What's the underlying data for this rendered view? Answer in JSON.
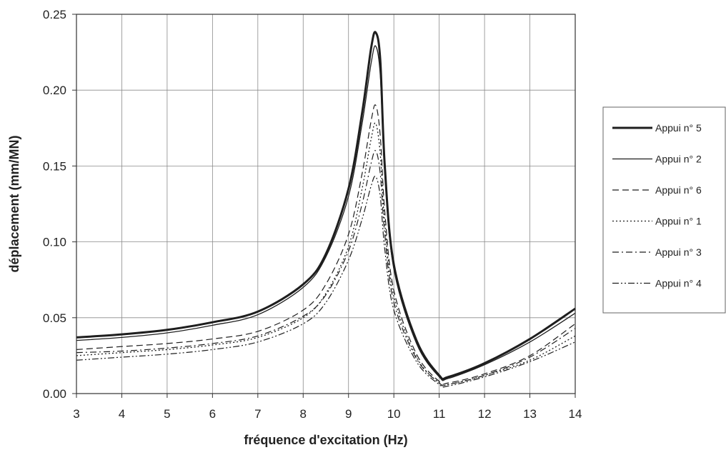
{
  "chart_data": {
    "type": "line",
    "title": "",
    "xlabel": "fréquence d'excitation (Hz)",
    "ylabel": "déplacement (mm/MN)",
    "xlim": [
      3,
      14
    ],
    "ylim": [
      0,
      0.25
    ],
    "xticks": [
      "3",
      "4",
      "5",
      "6",
      "7",
      "8",
      "9",
      "10",
      "11",
      "12",
      "13",
      "14"
    ],
    "yticks": [
      "0.00",
      "0.05",
      "0.10",
      "0.15",
      "0.20",
      "0.25"
    ],
    "grid": true,
    "legend_position": "right",
    "series": [
      {
        "name": "Appui n° 5",
        "style": "thick",
        "x": [
          3,
          4,
          5,
          6,
          7,
          8,
          8.5,
          9,
          9.3,
          9.5,
          9.6,
          9.7,
          9.8,
          10,
          10.5,
          11,
          11.2,
          12,
          13,
          14
        ],
        "y": [
          0.037,
          0.039,
          0.042,
          0.047,
          0.054,
          0.072,
          0.092,
          0.135,
          0.185,
          0.228,
          0.238,
          0.22,
          0.15,
          0.085,
          0.035,
          0.012,
          0.011,
          0.02,
          0.036,
          0.056
        ]
      },
      {
        "name": "Appui n° 2",
        "style": "solid",
        "x": [
          3,
          4,
          5,
          6,
          7,
          8,
          8.5,
          9,
          9.3,
          9.5,
          9.6,
          9.7,
          9.8,
          10,
          10.5,
          11,
          11.2,
          12,
          13,
          14
        ],
        "y": [
          0.035,
          0.037,
          0.04,
          0.045,
          0.052,
          0.07,
          0.09,
          0.13,
          0.178,
          0.218,
          0.229,
          0.21,
          0.145,
          0.082,
          0.033,
          0.011,
          0.01,
          0.019,
          0.034,
          0.053
        ]
      },
      {
        "name": "Appui n° 6",
        "style": "dashed",
        "x": [
          3,
          4,
          5,
          6,
          7,
          8,
          8.5,
          9,
          9.3,
          9.5,
          9.6,
          9.7,
          9.8,
          10,
          10.5,
          11,
          11.2,
          12,
          13,
          14
        ],
        "y": [
          0.029,
          0.031,
          0.033,
          0.036,
          0.041,
          0.055,
          0.072,
          0.105,
          0.145,
          0.18,
          0.19,
          0.17,
          0.12,
          0.068,
          0.026,
          0.008,
          0.007,
          0.013,
          0.025,
          0.046
        ]
      },
      {
        "name": "Appui n° 1",
        "style": "dotted",
        "x": [
          3,
          4,
          5,
          6,
          7,
          8,
          8.5,
          9,
          9.3,
          9.5,
          9.6,
          9.7,
          9.8,
          10,
          10.5,
          11,
          11.2,
          12,
          13,
          14
        ],
        "y": [
          0.025,
          0.027,
          0.029,
          0.032,
          0.037,
          0.05,
          0.066,
          0.097,
          0.135,
          0.168,
          0.178,
          0.158,
          0.112,
          0.064,
          0.024,
          0.007,
          0.006,
          0.012,
          0.022,
          0.038
        ]
      },
      {
        "name": "Appui n° 3",
        "style": "dashdot",
        "x": [
          3,
          4,
          5,
          6,
          7,
          8,
          8.5,
          9,
          9.3,
          9.5,
          9.6,
          9.7,
          9.8,
          10,
          10.5,
          11,
          11.2,
          12,
          13,
          14
        ],
        "y": [
          0.027,
          0.028,
          0.03,
          0.033,
          0.038,
          0.051,
          0.065,
          0.094,
          0.125,
          0.152,
          0.16,
          0.145,
          0.105,
          0.06,
          0.023,
          0.007,
          0.006,
          0.012,
          0.024,
          0.043
        ]
      },
      {
        "name": "Appui n° 4",
        "style": "dashdotdot",
        "x": [
          3,
          4,
          5,
          6,
          7,
          8,
          8.5,
          9,
          9.3,
          9.5,
          9.6,
          9.7,
          9.8,
          10,
          10.5,
          11,
          11.2,
          12,
          13,
          14
        ],
        "y": [
          0.022,
          0.024,
          0.026,
          0.029,
          0.034,
          0.046,
          0.06,
          0.088,
          0.115,
          0.137,
          0.143,
          0.13,
          0.095,
          0.055,
          0.021,
          0.006,
          0.005,
          0.011,
          0.021,
          0.034
        ]
      }
    ]
  }
}
